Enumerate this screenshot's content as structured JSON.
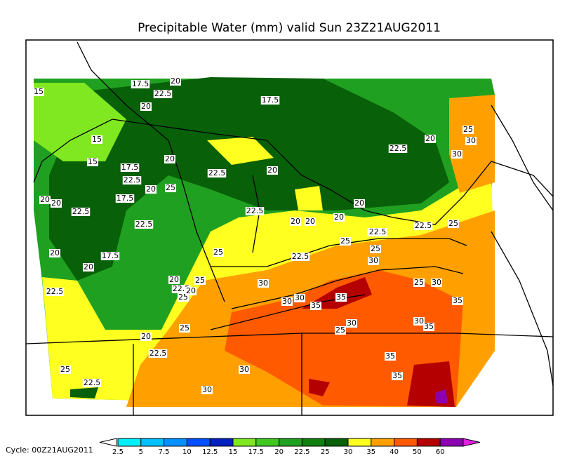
{
  "title": "Precipitable Water (mm) valid Sun 23Z21AUG2011",
  "cycle": "Cycle: 00Z21AUG2011",
  "colorbar": {
    "labels": [
      "2.5",
      "5",
      "7.5",
      "10",
      "12.5",
      "15",
      "17.5",
      "20",
      "22.5",
      "25",
      "30",
      "35",
      "40",
      "50",
      "60"
    ],
    "colors": [
      "#ffffff",
      "#00f0ff",
      "#00c0ff",
      "#0090ff",
      "#0050ff",
      "#0020c0",
      "#80e820",
      "#40c820",
      "#20a020",
      "#108010",
      "#086008",
      "#ffff20",
      "#ffa000",
      "#ff5a00",
      "#b40000",
      "#8c00b4",
      "#e020e0"
    ]
  },
  "contour_labels": [
    "15",
    "17.5",
    "20",
    "22.5",
    "20",
    "17.5",
    "15",
    "15",
    "17.5",
    "20",
    "22.5",
    "20",
    "22.5",
    "20",
    "17.5",
    "22.5",
    "20",
    "20",
    "22.5",
    "25",
    "22.5",
    "20",
    "20",
    "20",
    "25",
    "30",
    "22.5",
    "20",
    "25",
    "30",
    "20",
    "25",
    "22.5",
    "25",
    "20",
    "22.5",
    "25",
    "20",
    "22.5",
    "25",
    "30",
    "30",
    "35",
    "30",
    "35",
    "25",
    "30",
    "35",
    "30",
    "30",
    "35",
    "35",
    "35",
    "25",
    "22.5",
    "25",
    "22.5",
    "30",
    "20",
    "17.5",
    "20",
    "22.5",
    "25",
    "30",
    "30",
    "20",
    "22.5",
    "25",
    "22.5"
  ]
}
